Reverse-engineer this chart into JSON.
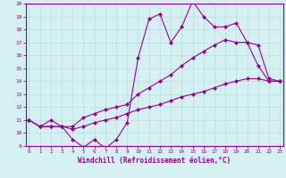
{
  "x": [
    0,
    1,
    2,
    3,
    4,
    5,
    6,
    7,
    8,
    9,
    10,
    11,
    12,
    13,
    14,
    15,
    16,
    17,
    18,
    19,
    20,
    21,
    22,
    23
  ],
  "line1": [
    11.0,
    10.5,
    10.5,
    10.5,
    9.5,
    8.9,
    9.5,
    8.8,
    9.5,
    10.8,
    15.8,
    18.8,
    19.2,
    17.0,
    18.2,
    20.2,
    19.0,
    18.2,
    18.2,
    18.5,
    17.0,
    15.2,
    14.0,
    14.0
  ],
  "line2": [
    11.0,
    10.5,
    11.0,
    10.5,
    10.5,
    11.2,
    11.5,
    11.8,
    12.0,
    12.2,
    13.0,
    13.5,
    14.0,
    14.5,
    15.2,
    15.8,
    16.3,
    16.8,
    17.2,
    17.0,
    17.0,
    16.8,
    14.2,
    14.0
  ],
  "line3": [
    11.0,
    10.5,
    10.5,
    10.5,
    10.3,
    10.5,
    10.8,
    11.0,
    11.2,
    11.5,
    11.8,
    12.0,
    12.2,
    12.5,
    12.8,
    13.0,
    13.2,
    13.5,
    13.8,
    14.0,
    14.2,
    14.2,
    14.0,
    14.0
  ],
  "color": "#990099",
  "bg_color": "#d4f0f0",
  "grid_color": "#b8dede",
  "ylim": [
    9,
    20
  ],
  "xlim_min": -0.3,
  "xlim_max": 23.3,
  "yticks": [
    9,
    10,
    11,
    12,
    13,
    14,
    15,
    16,
    17,
    18,
    19,
    20
  ],
  "xticks": [
    0,
    1,
    2,
    3,
    4,
    5,
    6,
    7,
    8,
    9,
    10,
    11,
    12,
    13,
    14,
    15,
    16,
    17,
    18,
    19,
    20,
    21,
    22,
    23
  ],
  "xlabel": "Windchill (Refroidissement éolien,°C)",
  "marker": "D",
  "markersize": 2.0,
  "linewidth": 0.8
}
